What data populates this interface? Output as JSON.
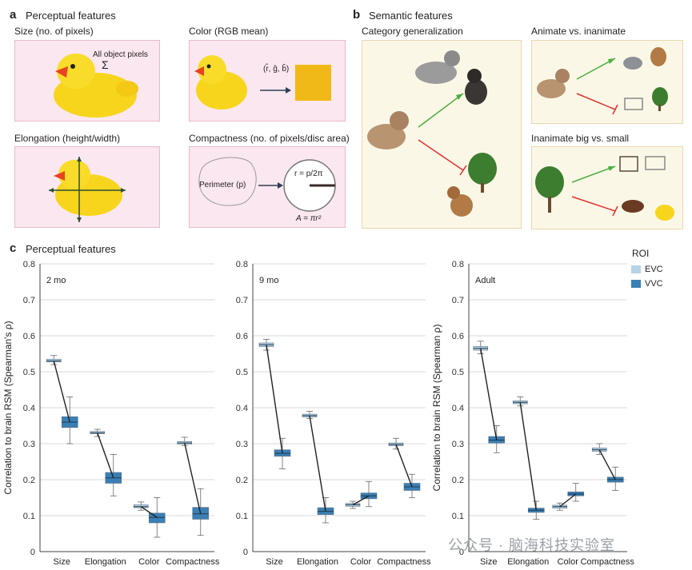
{
  "panel_a": {
    "letter": "a",
    "title": "Perceptual features",
    "size_title": "Size (no. of pixels)",
    "size_note": "All object pixels",
    "size_sigma": "Σ",
    "color_title": "Color (RGB mean)",
    "color_formula": "(r̂, ĝ, b̂)",
    "color_swatch": "#f0b918",
    "elong_title": "Elongation (height/width)",
    "compact_title": "Compactness (no. of pixels/disc area)",
    "perimeter_label": "Perimeter (p)",
    "radius_label": "r = p/2π",
    "area_label": "A = πr²"
  },
  "panel_b": {
    "letter": "b",
    "title": "Semantic features",
    "cat_title": "Category generalization",
    "anim_title": "Animate vs. inanimate",
    "big_title": "Inanimate big vs. small",
    "arrow_green": "#4caf3f",
    "arrow_red": "#e32f2f"
  },
  "panel_c": {
    "letter": "c",
    "title": "Perceptual features",
    "legend_title": "ROI",
    "legend": [
      {
        "name": "EVC",
        "color": "#b7d3e6"
      },
      {
        "name": "VVC",
        "color": "#3a7fb5"
      }
    ]
  },
  "watermark": "公众号 · 脑海科技实验室",
  "chart_data": [
    {
      "type": "box",
      "title": "2 mo",
      "ylabel": "Correlation to brain RSM (Spearman's ρ)",
      "categories": [
        "Size",
        "Elongation",
        "Color",
        "Compactness"
      ],
      "ylim": [
        0,
        0.8
      ],
      "yticks": [
        0,
        0.1,
        0.2,
        0.3,
        0.4,
        0.5,
        0.6,
        0.7,
        0.8
      ],
      "grid": true,
      "series": [
        {
          "name": "EVC",
          "medians": [
            0.53,
            0.33,
            0.125,
            0.302
          ],
          "q1": [
            0.527,
            0.328,
            0.122,
            0.299
          ],
          "q3": [
            0.535,
            0.334,
            0.13,
            0.306
          ],
          "min": [
            0.52,
            0.32,
            0.115,
            0.295
          ],
          "max": [
            0.545,
            0.34,
            0.138,
            0.318
          ]
        },
        {
          "name": "VVC",
          "medians": [
            0.36,
            0.205,
            0.095,
            0.105
          ],
          "q1": [
            0.345,
            0.19,
            0.08,
            0.09
          ],
          "q3": [
            0.375,
            0.22,
            0.107,
            0.123
          ],
          "min": [
            0.3,
            0.155,
            0.04,
            0.045
          ],
          "max": [
            0.43,
            0.27,
            0.15,
            0.175
          ]
        }
      ]
    },
    {
      "type": "box",
      "title": "9 mo",
      "ylabel": "",
      "categories": [
        "Size",
        "Elongation",
        "Color",
        "Compactness"
      ],
      "ylim": [
        0,
        0.8
      ],
      "yticks": [
        0,
        0.1,
        0.2,
        0.3,
        0.4,
        0.5,
        0.6,
        0.7,
        0.8
      ],
      "grid": true,
      "series": [
        {
          "name": "EVC",
          "medians": [
            0.575,
            0.378,
            0.13,
            0.298
          ],
          "q1": [
            0.57,
            0.374,
            0.126,
            0.294
          ],
          "q3": [
            0.58,
            0.382,
            0.134,
            0.302
          ],
          "min": [
            0.56,
            0.37,
            0.12,
            0.285
          ],
          "max": [
            0.59,
            0.39,
            0.14,
            0.315
          ]
        },
        {
          "name": "VVC",
          "medians": [
            0.273,
            0.112,
            0.155,
            0.18
          ],
          "q1": [
            0.265,
            0.103,
            0.147,
            0.17
          ],
          "q3": [
            0.283,
            0.122,
            0.163,
            0.19
          ],
          "min": [
            0.23,
            0.08,
            0.125,
            0.15
          ],
          "max": [
            0.315,
            0.15,
            0.195,
            0.215
          ]
        }
      ]
    },
    {
      "type": "box",
      "title": "Adult",
      "ylabel": "Correlation to brain RSM (Spearman ρ)",
      "categories": [
        "Size",
        "Elongation",
        "Color",
        "Compactness"
      ],
      "ylim": [
        0,
        0.8
      ],
      "yticks": [
        0,
        0.1,
        0.2,
        0.3,
        0.4,
        0.5,
        0.6,
        0.7,
        0.8
      ],
      "grid": true,
      "series": [
        {
          "name": "EVC",
          "medians": [
            0.565,
            0.415,
            0.125,
            0.283
          ],
          "q1": [
            0.56,
            0.411,
            0.121,
            0.279
          ],
          "q3": [
            0.57,
            0.419,
            0.129,
            0.288
          ],
          "min": [
            0.55,
            0.405,
            0.115,
            0.27
          ],
          "max": [
            0.585,
            0.43,
            0.135,
            0.3
          ]
        },
        {
          "name": "VVC",
          "medians": [
            0.31,
            0.115,
            0.16,
            0.2
          ],
          "q1": [
            0.302,
            0.109,
            0.155,
            0.193
          ],
          "q3": [
            0.32,
            0.121,
            0.166,
            0.207
          ],
          "min": [
            0.275,
            0.09,
            0.14,
            0.17
          ],
          "max": [
            0.35,
            0.14,
            0.19,
            0.235
          ]
        }
      ]
    }
  ]
}
